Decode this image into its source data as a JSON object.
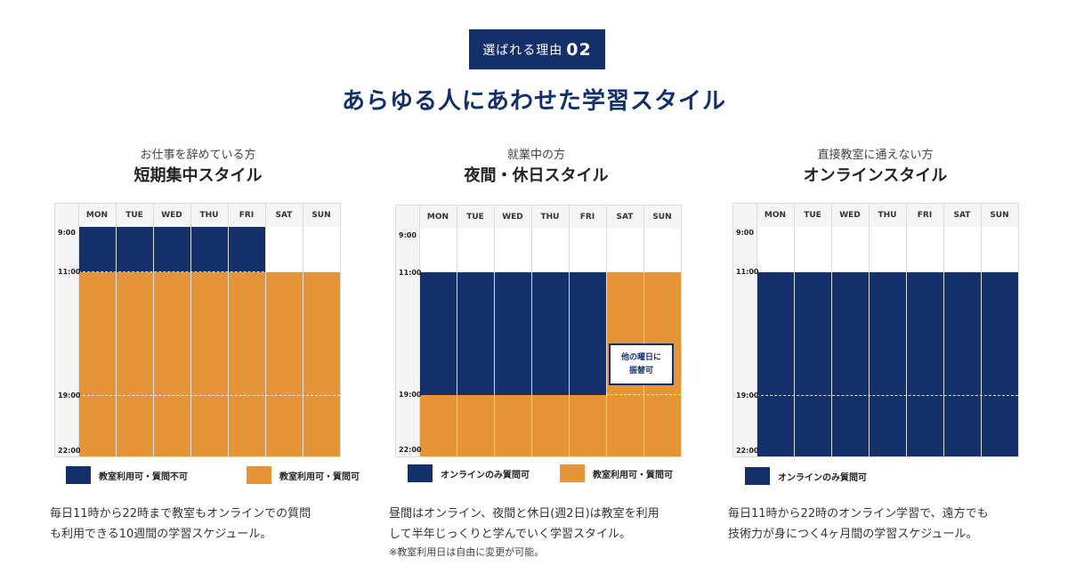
{
  "badge": {
    "text": "選ばれる理由",
    "number": "02"
  },
  "title": "あらゆる人にあわせた学習スタイル",
  "days": [
    "MON",
    "TUE",
    "WED",
    "THU",
    "FRI",
    "SAT",
    "SUN"
  ],
  "times": [
    "9:00",
    "11:00",
    "19:00",
    "22:00"
  ],
  "colors": {
    "navy": "#13306b",
    "orange": "#e59538"
  },
  "columns": [
    {
      "subtitle": "お仕事を辞めている方",
      "name": "短期集中スタイル",
      "legend": [
        {
          "label": "教室利用可・質問不可",
          "color": "navy"
        },
        {
          "label": "教室利用可・質問可",
          "color": "orange"
        }
      ],
      "desc_lines": [
        "毎日11時から22時まで教室もオンラインでの質問",
        "も利用できる10週間の学習スケジュール。"
      ]
    },
    {
      "subtitle": "就業中の方",
      "name": "夜間・休日スタイル",
      "legend": [
        {
          "label": "オンラインのみ質問可",
          "color": "navy"
        },
        {
          "label": "教室利用可・質問可",
          "color": "orange"
        }
      ],
      "callout": [
        "他の曜日に",
        "振替可"
      ],
      "desc_lines": [
        "昼間はオンライン、夜間と休日(週2日)は教室を利用",
        "して半年じっくりと学んでいく学習スタイル。"
      ],
      "note": "※教室利用日は自由に変更が可能。"
    },
    {
      "subtitle": "直接教室に通えない方",
      "name": "オンラインスタイル",
      "legend": [
        {
          "label": "オンラインのみ質問可",
          "color": "navy"
        }
      ],
      "desc_lines": [
        "毎日11時から22時のオンライン学習で、遠方でも",
        "技術力が身につく4ヶ月間の学習スケジュール。"
      ]
    }
  ]
}
